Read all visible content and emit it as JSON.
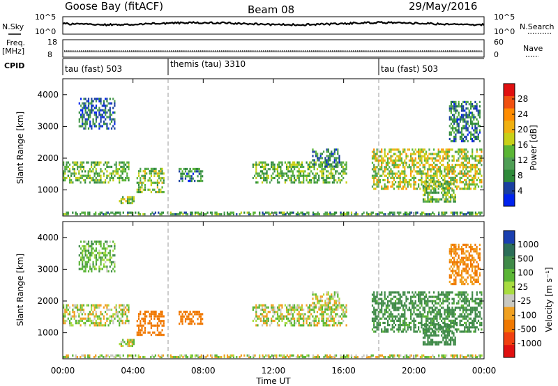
{
  "header": {
    "station": "Goose Bay (fitACF)",
    "beam": "Beam 08",
    "date": "29/May/2016"
  },
  "strip_labels": {
    "nsky": "N.Sky",
    "nsky_ticks": [
      "10^5",
      "10^0"
    ],
    "nsearch": "N.Search",
    "nsearch_ticks": [
      "10^5",
      "10^0"
    ],
    "freq_top": "Freq.",
    "freq_unit": "[MHz]",
    "freq_ticks": [
      "18",
      "8"
    ],
    "nave": "Nave",
    "nave_ticks": [
      "60",
      "0"
    ],
    "cpid": "CPID"
  },
  "cpid_segments": [
    {
      "label": "tau (fast) 503"
    },
    {
      "label": "themis (tau) 3310"
    },
    {
      "label": "tau (fast) 503"
    }
  ],
  "axes": {
    "ylabel": "Slant Range [km]",
    "yticks": [
      "1000",
      "2000",
      "3000",
      "4000"
    ],
    "xticks": [
      "00:00",
      "04:00",
      "08:00",
      "12:00",
      "16:00",
      "20:00",
      "00:00"
    ],
    "xlabel": "Time UT"
  },
  "colorbars": {
    "power": {
      "label": "Power [dB]",
      "ticks": [
        "4",
        "8",
        "12",
        "16",
        "20",
        "24",
        "28"
      ],
      "colors": [
        "#0022ee",
        "#1a3fa0",
        "#2f8a3a",
        "#4f9e55",
        "#5ab535",
        "#c8d018",
        "#f0b010",
        "#ff8c00",
        "#f05010",
        "#e01010"
      ]
    },
    "velocity": {
      "label": "Velocity [m s⁻¹]",
      "ticks": [
        "1000",
        "500",
        "100",
        "25",
        "-25",
        "-100",
        "-500",
        "-1000"
      ],
      "colors": [
        "#1a3fb0",
        "#2c6e58",
        "#3f8a48",
        "#5ab535",
        "#a8dc40",
        "#c8c8c0",
        "#f0a020",
        "#f07800",
        "#f04010",
        "#e01010"
      ]
    }
  },
  "chart_data": {
    "type": "heatmap",
    "x_range_hours": [
      0,
      24
    ],
    "y_range_km": [
      180,
      4500
    ],
    "cpid_switch_times_hours": [
      6.0,
      18.0
    ],
    "cpid_segments": [
      {
        "start_h": 0,
        "end_h": 6,
        "mode": "tau (fast) 503"
      },
      {
        "start_h": 6,
        "end_h": 18,
        "mode": "themis (tau) 3310"
      },
      {
        "start_h": 18,
        "end_h": 24,
        "mode": "tau (fast) 503"
      }
    ],
    "nave_level": 26,
    "freq_level_mhz": 9,
    "power_scale_db": [
      0,
      30
    ],
    "velocity_scale_mps": [
      -1000,
      1000
    ],
    "echo_regions": [
      {
        "t0": 0.0,
        "t1": 3.8,
        "r0": 1200,
        "r1": 1900,
        "power_db": 12,
        "velocity_mps": 5
      },
      {
        "t0": 0.9,
        "t1": 3.0,
        "r0": 2900,
        "r1": 3900,
        "power_db": 6,
        "velocity_mps": 60
      },
      {
        "t0": 3.2,
        "t1": 4.1,
        "r0": 550,
        "r1": 800,
        "power_db": 14,
        "velocity_mps": 0
      },
      {
        "t0": 4.2,
        "t1": 5.8,
        "r0": 900,
        "r1": 1700,
        "power_db": 14,
        "velocity_mps": -200
      },
      {
        "t0": 6.6,
        "t1": 8.0,
        "r0": 1250,
        "r1": 1700,
        "power_db": 8,
        "velocity_mps": -200
      },
      {
        "t0": 10.8,
        "t1": 16.2,
        "r0": 1200,
        "r1": 1900,
        "power_db": 12,
        "velocity_mps": 0
      },
      {
        "t0": 14.2,
        "t1": 15.8,
        "r0": 1700,
        "r1": 2300,
        "power_db": 8,
        "velocity_mps": 0
      },
      {
        "t0": 17.6,
        "t1": 23.9,
        "r0": 1000,
        "r1": 2300,
        "power_db": 16,
        "velocity_mps": 150
      },
      {
        "t0": 20.5,
        "t1": 22.4,
        "r0": 600,
        "r1": 1300,
        "power_db": 12,
        "velocity_mps": 250
      },
      {
        "t0": 22.0,
        "t1": 23.8,
        "r0": 2500,
        "r1": 3800,
        "power_db": 8,
        "velocity_mps": -100
      },
      {
        "t0": 0.0,
        "t1": 24.0,
        "r0": 200,
        "r1": 300,
        "power_db": 10,
        "velocity_mps": 0
      }
    ]
  }
}
